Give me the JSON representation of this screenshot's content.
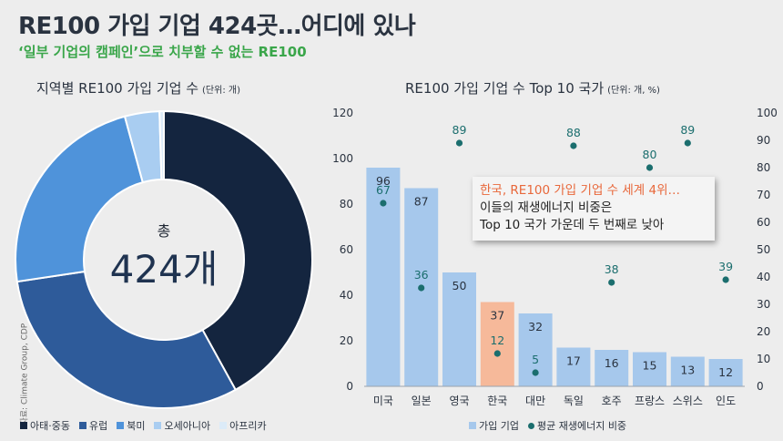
{
  "title": "RE100 가입 기업 424곳…어디에 있나",
  "subtitle": "‘일부 기업의 캠페인’으로 치부할 수 없는 RE100",
  "source": "자료: Climate Group, CDP",
  "chart_data": [
    {
      "type": "pie",
      "title": "지역별 RE100 가입 기업 수",
      "unit": "(단위: 개)",
      "center_label": "총",
      "center_value": "424개",
      "categories": [
        "아태·중동",
        "유럽",
        "북미",
        "오세아니아",
        "아프리카"
      ],
      "values": [
        178,
        130,
        98,
        16,
        2
      ],
      "colors": [
        "#14253f",
        "#2e5b9a",
        "#4f93da",
        "#a9cdf1",
        "#dcebf8"
      ],
      "legend_position": "bottom"
    },
    {
      "type": "bar",
      "title": "RE100 가입 기업 수 Top 10 국가",
      "unit": "(단위: 개, %)",
      "categories": [
        "미국",
        "일본",
        "영국",
        "한국",
        "대만",
        "독일",
        "호주",
        "프랑스",
        "스위스",
        "인도"
      ],
      "series": [
        {
          "name": "가입 기업",
          "type": "bar",
          "axis": "left",
          "values": [
            96,
            87,
            50,
            37,
            32,
            17,
            16,
            15,
            13,
            12
          ],
          "color": "#a6c8ec",
          "highlight_index": 3,
          "highlight_color": "#f6b99a"
        },
        {
          "name": "평균 재생에너지 비중",
          "type": "scatter",
          "axis": "right",
          "values": [
            67,
            36,
            89,
            12,
            5,
            88,
            38,
            80,
            89,
            39
          ],
          "color": "#1b6e6e"
        }
      ],
      "ylim": [
        0,
        120
      ],
      "y_ticks": [
        0,
        20,
        40,
        60,
        80,
        100,
        120
      ],
      "y2lim": [
        0,
        100
      ],
      "y2_ticks": [
        0,
        10,
        20,
        30,
        40,
        50,
        60,
        70,
        80,
        90,
        100
      ],
      "grid": false,
      "legend_position": "bottom",
      "annotation": {
        "highlight": "한국, RE100 가입 기업 수 세계 4위…",
        "line2": "이들의 재생에너지 비중은",
        "line3": "Top 10 국가 가운데 두 번째로 낮아"
      }
    }
  ]
}
